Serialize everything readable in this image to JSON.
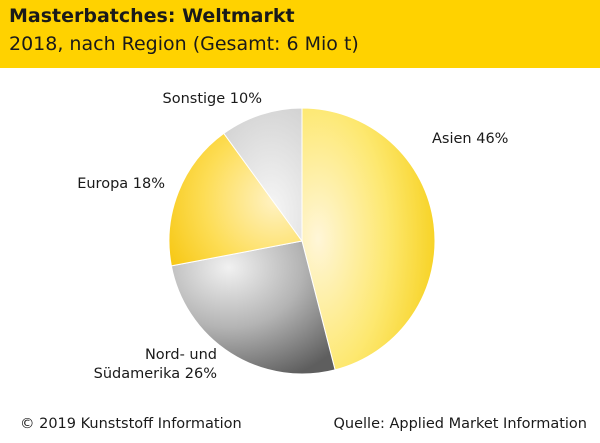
{
  "header": {
    "title": "Masterbatches: Weltmarkt",
    "subtitle": "2018, nach Region (Gesamt: 6 Mio t)",
    "background": "#FFD200"
  },
  "footer": {
    "copyright": "© 2019 Kunststoff Information",
    "source": "Quelle: Applied Market Information"
  },
  "chart_data": {
    "type": "pie",
    "title": "Masterbatches: Weltmarkt",
    "subtitle": "2018, nach Region (Gesamt: 6 Mio t)",
    "slices": [
      {
        "label": "Asien 46%",
        "value": 46,
        "color": "#FDE04A"
      },
      {
        "label": "Nord- und Südamerika 26%",
        "value": 26,
        "color": "#8A8A8A"
      },
      {
        "label": "Europa 18%",
        "value": 18,
        "color": "#FDD435"
      },
      {
        "label": "Sonstige 10%",
        "value": 10,
        "color": "#DADADA"
      }
    ]
  }
}
